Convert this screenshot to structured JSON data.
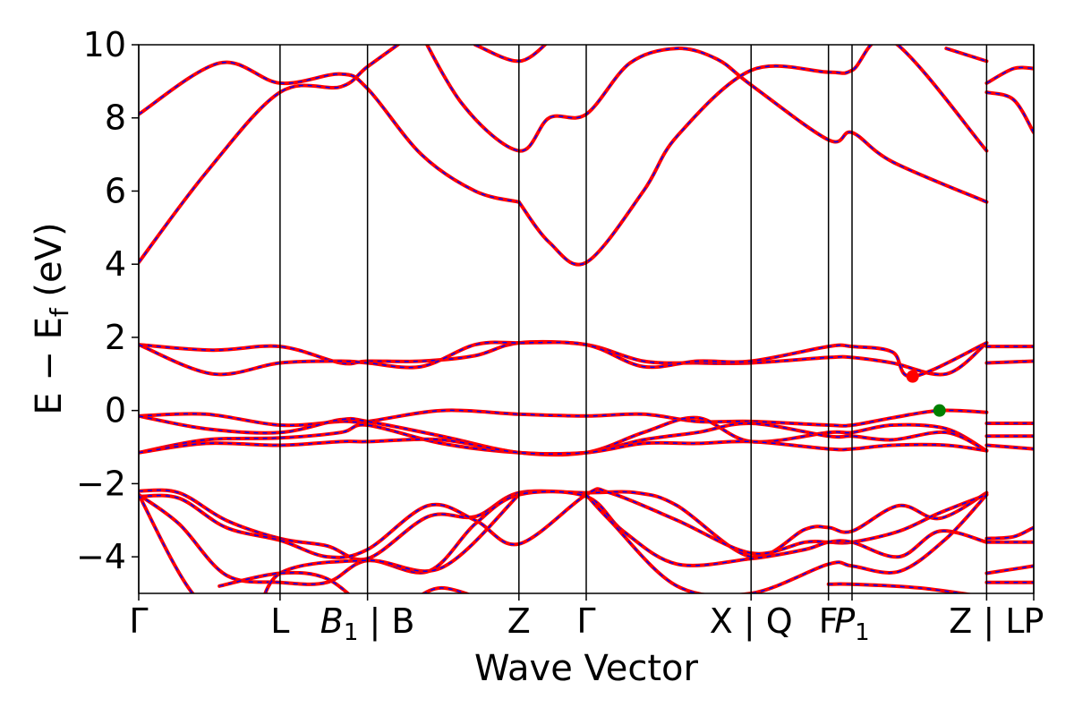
{
  "chart_data": {
    "type": "line",
    "xlabel": "Wave Vector",
    "ylabel_main": "E − E",
    "ylabel_sub": "f",
    "ylabel_unit": " (eV)",
    "ylim": [
      -5,
      10
    ],
    "xlim": [
      0,
      13.3
    ],
    "grid": false,
    "legend": "none",
    "yticks": [
      {
        "value": -4,
        "label": "−4"
      },
      {
        "value": -2,
        "label": "−2"
      },
      {
        "value": 0,
        "label": "0"
      },
      {
        "value": 2,
        "label": "2"
      },
      {
        "value": 4,
        "label": "4"
      },
      {
        "value": 6,
        "label": "6"
      },
      {
        "value": 8,
        "label": "8"
      },
      {
        "value": 10,
        "label": "10"
      }
    ],
    "kpath_lines": [
      0,
      2.1,
      3.4,
      5.65,
      6.65,
      9.1,
      10.25,
      10.6,
      12.6,
      13.3
    ],
    "xticks": [
      {
        "value": 0,
        "text": "Γ",
        "sub": ""
      },
      {
        "value": 2.1,
        "text": "L",
        "sub": ""
      },
      {
        "value": 3.4,
        "text": "B",
        "sub": "1",
        "suffix": " | B",
        "italic": true
      },
      {
        "value": 5.65,
        "text": "Z",
        "sub": ""
      },
      {
        "value": 6.65,
        "text": "Γ",
        "sub": ""
      },
      {
        "value": 9.1,
        "text": "X | Q",
        "sub": ""
      },
      {
        "value": 10.25,
        "text": "F",
        "sub": ""
      },
      {
        "value": 10.6,
        "text": "P",
        "sub": "1",
        "italic": true
      },
      {
        "value": 12.6,
        "text": "Z | L",
        "sub": ""
      },
      {
        "value": 13.3,
        "text": "P",
        "sub": ""
      }
    ],
    "colors": {
      "band": "#ff0000",
      "band_dash": "#0000ff",
      "vbm": "#008000",
      "cbm": "#ff0000"
    },
    "vbm": {
      "x": 11.9,
      "y": 0.0
    },
    "cbm": {
      "x": 11.5,
      "y": 0.93
    },
    "series": [
      {
        "x": [
          0,
          1.2,
          2.1,
          3.0,
          3.4,
          4.2,
          5.0,
          5.65
        ],
        "values": [
          8.1,
          9.5,
          8.95,
          9.2,
          8.8,
          7.0,
          6.0,
          5.7
        ]
      },
      {
        "x": [
          0,
          1.0,
          2.1,
          3.0,
          3.4,
          4.0,
          4.6
        ],
        "values": [
          4.05,
          6.5,
          8.7,
          8.85,
          9.4,
          10.2,
          11.0
        ]
      },
      {
        "x": [
          4.0,
          4.8,
          5.65,
          6.1,
          6.65,
          7.3,
          8.0,
          8.6,
          9.1,
          10.25,
          10.6,
          11.2,
          12.6
        ],
        "values": [
          11.0,
          8.4,
          7.1,
          8.0,
          8.1,
          9.5,
          9.9,
          9.6,
          8.9,
          7.4,
          7.6,
          6.8,
          5.7
        ]
      },
      {
        "x": [
          5.65,
          6.1,
          6.65,
          7.5,
          8.0,
          9.1,
          10.25,
          10.6,
          11.2,
          12.6
        ],
        "values": [
          5.7,
          4.6,
          4.05,
          6.0,
          7.5,
          9.3,
          9.25,
          9.3,
          10.1,
          7.1
        ]
      },
      {
        "x": [
          5.0,
          5.65,
          6.1
        ],
        "values": [
          10.0,
          9.55,
          10.1
        ]
      },
      {
        "x": [
          12.0,
          12.6
        ],
        "values": [
          9.9,
          9.55
        ]
      },
      {
        "x": [
          12.6,
          13.0,
          13.3
        ],
        "values": [
          8.95,
          9.35,
          9.35
        ]
      },
      {
        "x": [
          12.6,
          13.0,
          13.3
        ],
        "values": [
          8.7,
          8.5,
          7.6
        ]
      },
      {
        "x": [
          0,
          1.1,
          2.1,
          3.0,
          3.4,
          4.2,
          5.0,
          5.65,
          6.65,
          7.5,
          8.3,
          9.1,
          10.25,
          10.6,
          11.2,
          12.0,
          12.6
        ],
        "values": [
          1.8,
          1.65,
          1.75,
          1.3,
          1.35,
          1.35,
          1.5,
          1.85,
          1.8,
          1.35,
          1.3,
          1.3,
          1.45,
          1.45,
          1.3,
          1.0,
          1.85
        ]
      },
      {
        "x": [
          0,
          1.1,
          2.1,
          3.0,
          3.4,
          4.2,
          5.0,
          5.65,
          6.65,
          7.5,
          8.3,
          9.1,
          10.25,
          10.6,
          11.2,
          11.5,
          12.6
        ],
        "values": [
          1.8,
          1.0,
          1.3,
          1.35,
          1.3,
          1.2,
          1.8,
          1.85,
          1.8,
          1.2,
          1.35,
          1.35,
          1.75,
          1.75,
          1.6,
          0.93,
          1.85
        ]
      },
      {
        "x": [
          12.6,
          13.3
        ],
        "values": [
          1.75,
          1.75
        ]
      },
      {
        "x": [
          12.6,
          13.3
        ],
        "values": [
          1.3,
          1.35
        ]
      },
      {
        "x": [
          0,
          1.0,
          2.1,
          3.0,
          3.4,
          4.5,
          5.65,
          6.65,
          7.5,
          8.3,
          9.1,
          10.25,
          10.6,
          11.2,
          11.9,
          12.6
        ],
        "values": [
          -0.15,
          -0.1,
          -0.4,
          -0.3,
          -0.3,
          0.0,
          -0.1,
          -0.15,
          -0.1,
          -0.3,
          -0.3,
          -0.4,
          -0.4,
          -0.2,
          0.0,
          -0.05
        ]
      },
      {
        "x": [
          0,
          1.0,
          2.1,
          3.0,
          3.4,
          4.5,
          5.65,
          6.65,
          7.5,
          8.3,
          9.1,
          10.25,
          10.6,
          11.2,
          12.0,
          12.6
        ],
        "values": [
          -0.15,
          -0.5,
          -0.6,
          -0.25,
          -0.3,
          -0.7,
          -1.15,
          -1.15,
          -0.6,
          -0.2,
          -0.85,
          -0.6,
          -0.6,
          -0.4,
          -0.5,
          -1.1
        ]
      },
      {
        "x": [
          0,
          1.0,
          2.1,
          3.0,
          3.4,
          4.5,
          5.65,
          6.65,
          7.5,
          8.3,
          9.1,
          10.25,
          10.6,
          11.2,
          12.0,
          12.6
        ],
        "values": [
          -1.15,
          -0.8,
          -0.75,
          -0.6,
          -0.4,
          -0.9,
          -1.15,
          -1.15,
          -0.8,
          -0.6,
          -0.35,
          -0.7,
          -0.7,
          -0.8,
          -0.6,
          -1.1
        ]
      },
      {
        "x": [
          0,
          1.0,
          2.1,
          3.0,
          3.4,
          4.5,
          5.65,
          6.65,
          7.5,
          8.3,
          9.1,
          10.25,
          10.6,
          11.2,
          12.0,
          12.6
        ],
        "values": [
          -1.15,
          -0.9,
          -0.95,
          -0.85,
          -0.85,
          -0.8,
          -1.15,
          -1.15,
          -0.9,
          -0.9,
          -0.85,
          -1.05,
          -1.05,
          -0.95,
          -0.95,
          -1.1
        ]
      },
      {
        "x": [
          12.6,
          13.3
        ],
        "values": [
          -0.35,
          -0.35
        ]
      },
      {
        "x": [
          12.6,
          13.3
        ],
        "values": [
          -0.7,
          -0.7
        ]
      },
      {
        "x": [
          12.6,
          13.3
        ],
        "values": [
          -0.95,
          -1.05
        ]
      },
      {
        "x": [
          0,
          0.6,
          1.3,
          2.1,
          2.8,
          3.4,
          4.3,
          5.0,
          5.65,
          6.65,
          7.4,
          8.0,
          9.1,
          9.9,
          10.25,
          10.6,
          11.3,
          11.9,
          12.6
        ],
        "values": [
          -2.2,
          -2.25,
          -3.0,
          -3.5,
          -3.7,
          -4.05,
          -2.9,
          -2.9,
          -2.25,
          -2.25,
          -2.25,
          -2.6,
          -4.0,
          -3.25,
          -3.2,
          -3.3,
          -2.6,
          -2.95,
          -2.25
        ]
      },
      {
        "x": [
          0,
          0.6,
          1.3,
          2.1,
          2.8,
          3.4,
          4.3,
          5.0,
          5.65,
          6.65,
          7.0,
          8.0,
          9.1,
          9.9,
          10.25,
          10.6,
          11.3,
          11.9,
          12.6
        ],
        "values": [
          -2.35,
          -2.4,
          -3.2,
          -3.55,
          -4.0,
          -3.8,
          -2.6,
          -3.0,
          -3.65,
          -2.3,
          -2.25,
          -3.0,
          -3.9,
          -3.6,
          -3.6,
          -3.6,
          -3.3,
          -2.8,
          -2.3
        ]
      },
      {
        "x": [
          0,
          0.6,
          1.3,
          2.1,
          2.8,
          3.4,
          4.3,
          5.0,
          5.65,
          6.65,
          7.2,
          8.0,
          9.1,
          9.9,
          10.25,
          10.6,
          11.3,
          11.9,
          12.6
        ],
        "values": [
          -2.3,
          -3.1,
          -4.5,
          -4.7,
          -4.7,
          -4.1,
          -4.4,
          -3.1,
          -2.3,
          -2.35,
          -3.3,
          -4.2,
          -4.05,
          -3.8,
          -3.6,
          -3.6,
          -4.0,
          -3.3,
          -3.6
        ]
      },
      {
        "x": [
          0,
          0.8,
          1.6,
          2.1,
          3.4,
          4.5,
          5.65
        ],
        "values": [
          -2.3,
          -5.0,
          -6.0,
          -4.45,
          -4.1,
          -4.3,
          -2.3
        ]
      },
      {
        "x": [
          6.65,
          7.0,
          8.0,
          9.1,
          10.25,
          10.6,
          11.3,
          12.0,
          12.6
        ],
        "values": [
          -2.3,
          -3.0,
          -4.8,
          -5.0,
          -4.2,
          -4.25,
          -4.4,
          -3.5,
          -2.3
        ]
      },
      {
        "x": [
          1.2,
          2.1,
          2.8,
          3.4
        ],
        "values": [
          -4.8,
          -4.45,
          -4.6,
          -5.5
        ]
      },
      {
        "x": [
          4.0,
          4.5,
          5.3
        ],
        "values": [
          -5.3,
          -4.85,
          -5.3
        ]
      },
      {
        "x": [
          10.25,
          10.6,
          11.6,
          12.6
        ],
        "values": [
          -4.75,
          -4.75,
          -4.85,
          -5.1
        ]
      },
      {
        "x": [
          12.6,
          13.0,
          13.3
        ],
        "values": [
          -3.5,
          -3.45,
          -3.2
        ]
      },
      {
        "x": [
          12.6,
          13.3
        ],
        "values": [
          -3.6,
          -3.6
        ]
      },
      {
        "x": [
          12.6,
          13.3
        ],
        "values": [
          -4.45,
          -4.25
        ]
      },
      {
        "x": [
          12.6,
          13.3
        ],
        "values": [
          -4.7,
          -4.7
        ]
      }
    ]
  }
}
